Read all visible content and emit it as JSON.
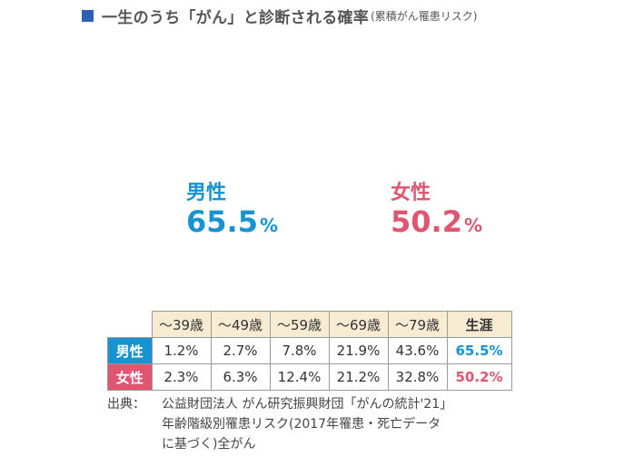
{
  "title": {
    "main": "一生のうち「がん」と診断される確率",
    "sub": "(累積がん罹患リスク)",
    "marker_color": "#2f5fb3"
  },
  "colors": {
    "male": "#1793d1",
    "female": "#e05670",
    "body_gray": "#c6c6c6",
    "header_bg": "#f7ecd2"
  },
  "chart_data": {
    "type": "table",
    "title": "一生のうち「がん」と診断される確率(累積がん罹患リスク)",
    "figures": [
      {
        "label": "男性",
        "value": 65.5,
        "value_text": "65.5",
        "unit": "%",
        "color": "#1793d1"
      },
      {
        "label": "女性",
        "value": 50.2,
        "value_text": "50.2",
        "unit": "%",
        "color": "#e05670"
      }
    ],
    "columns": [
      "～39歳",
      "～49歳",
      "～59歳",
      "～69歳",
      "～79歳",
      "生涯"
    ],
    "rows": [
      {
        "label": "男性",
        "values": [
          "1.2%",
          "2.7%",
          "7.8%",
          "21.9%",
          "43.6%",
          "65.5%"
        ]
      },
      {
        "label": "女性",
        "values": [
          "2.3%",
          "6.3%",
          "12.4%",
          "21.2%",
          "32.8%",
          "50.2%"
        ]
      }
    ]
  },
  "source": {
    "label": "出典：",
    "lines": [
      "公益財団法人 がん研究振興財団「がんの統計'21」",
      "年齢階級別罹患リスク(2017年罹患・死亡データ",
      "に基づく)全がん"
    ]
  }
}
